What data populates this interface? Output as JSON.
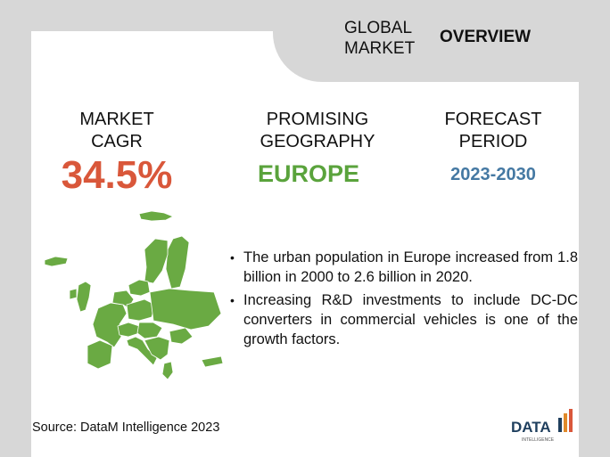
{
  "header": {
    "global_market": "GLOBAL MARKET",
    "overview": "OVERVIEW"
  },
  "stats": {
    "cagr": {
      "label_line1": "MARKET",
      "label_line2": "CAGR",
      "value": "34.5%",
      "color": "#d9573a"
    },
    "geography": {
      "label_line1": "PROMISING",
      "label_line2": "GEOGRAPHY",
      "value": "EUROPE",
      "color": "#5aa33c"
    },
    "forecast": {
      "label_line1": "FORECAST",
      "label_line2": "PERIOD",
      "value": "2023-2030",
      "color": "#4579a3"
    }
  },
  "map": {
    "region": "europe",
    "fill": "#6aaa43"
  },
  "bullets": [
    "The urban population in Europe increased from 1.8 billion in 2000 to 2.6 billion in 2020.",
    "Increasing R&D investments to include DC-DC converters in commercial vehicles is one of the growth factors."
  ],
  "source": "Source: DataM Intelligence 2023",
  "logo": {
    "word": "DATA",
    "tagline": "INTELLIGENCE"
  }
}
